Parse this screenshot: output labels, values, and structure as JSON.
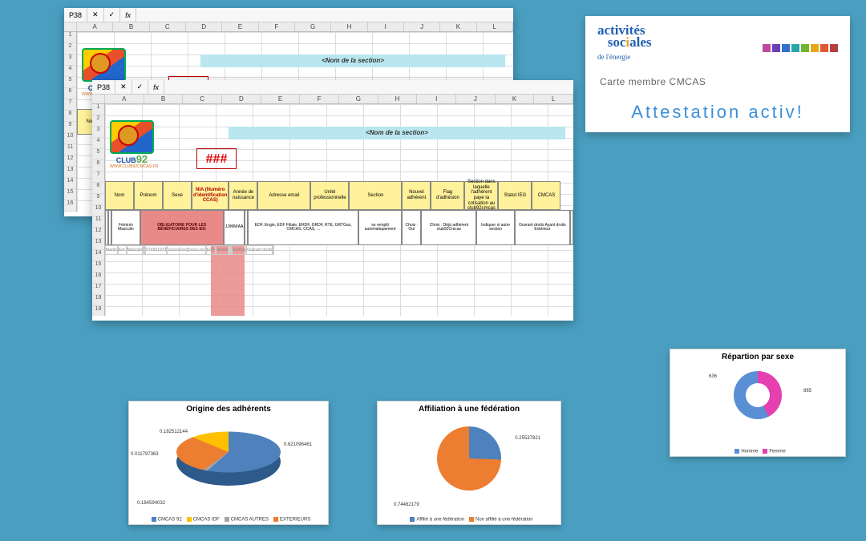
{
  "page_bg": "#4a9fc1",
  "spreadsheet": {
    "cell_ref": "P38",
    "fx_symbol": "fx",
    "col_letters": [
      "A",
      "B",
      "C",
      "D",
      "E",
      "F",
      "G",
      "H",
      "I",
      "J",
      "K",
      "L"
    ],
    "section_title": "<Nom de la section>",
    "hash": "###",
    "logo": {
      "line1": "CLUB",
      "line2": "92",
      "sub": "WWW.CLUB92CMCAS.FR",
      "colors": {
        "blue": "#1a4aa8",
        "green": "#58b04a",
        "orange": "#d66b1f"
      }
    },
    "headers": [
      {
        "label": "Nom",
        "w": "w1"
      },
      {
        "label": "Prénom",
        "w": "w1"
      },
      {
        "label": "Sexe",
        "w": "w1"
      },
      {
        "label": "NIA (Numéro d'identification CCAS)",
        "w": "w2",
        "red_header": true
      },
      {
        "label": "Année de naissance",
        "w": "w1"
      },
      {
        "label": "Adresse email",
        "w": "w4"
      },
      {
        "label": "Unité professionnelle",
        "w": "w3"
      },
      {
        "label": "Section",
        "w": "w4"
      },
      {
        "label": "Nouvel adhérent",
        "w": "w1"
      },
      {
        "label": "Flag d'adhésion",
        "w": "w2"
      },
      {
        "label": "Section dans laquelle l'adhérent paye la cotisation au club92cmcas",
        "w": "w2"
      },
      {
        "label": "Statut IEG",
        "w": "w2"
      },
      {
        "label": "CMCAS",
        "w": "w1"
      }
    ],
    "subheaders": [
      "",
      "",
      "Féminin Masculin",
      "OBLIGATOIRE POUR LES BÉNÉFICIAIRES DES IEG",
      "JJ/MM/AA",
      "",
      "EDF, Engie, EDF Filiale, ERDF, GRDF, RTE, GRTGaz, CMCAS, CCAS, ...",
      "se remplit automatiquement",
      "Choix : Oui",
      "Choix : Déjà adhérent club92Cmcas",
      "Indiquer si autre section",
      "Ouvrant droits Ayant droits Extérieur",
      ""
    ],
    "sample_row": [
      "Martin",
      "Eric",
      "Masculin",
      "",
      "07/06/1973",
      "xxxxxxxxx@xxxx.xxx",
      "EDF",
      "Tennis",
      "",
      "",
      "Karting",
      "Ouvrant droits",
      ""
    ]
  },
  "card": {
    "brand_text": "activités sociales",
    "brand_sub": "de l'énergie",
    "line1": "Carte membre CMCAS",
    "line2": "Attestation activ!",
    "line2_color": "#3b8fd8",
    "square_colors": [
      "#c14b9b",
      "#6a3fb5",
      "#2f6fd1",
      "#2aa6a6",
      "#6fb52f",
      "#e6a817",
      "#e05a2f",
      "#b53f3f"
    ]
  },
  "chart1": {
    "title": "Origine des adhérents",
    "type": "pie3d",
    "labels": [
      "CMCAS 92",
      "CMCAS IDF",
      "CMCAS AUTRES",
      "EXTERIEURS"
    ],
    "values": [
      0.621096461,
      0.182512144,
      0.011797363,
      0.184594032
    ],
    "colors": [
      "#4f81bd",
      "#ffc000",
      "#a5a5a5",
      "#ed7d31"
    ]
  },
  "chart2": {
    "title": "Affiliation à une fédération",
    "type": "pie",
    "labels": [
      "Affilié à une fédération",
      "Non affilié à une fédération"
    ],
    "values": [
      0.25537821,
      0.74462179
    ],
    "colors": [
      "#4f81bd",
      "#ed7d31"
    ]
  },
  "chart3": {
    "title": "Répartion par sexe",
    "type": "donut",
    "labels": [
      "Homme",
      "Femme"
    ],
    "values": [
      865,
      636
    ],
    "colors": [
      "#5a8fd6",
      "#e53fb0"
    ]
  }
}
